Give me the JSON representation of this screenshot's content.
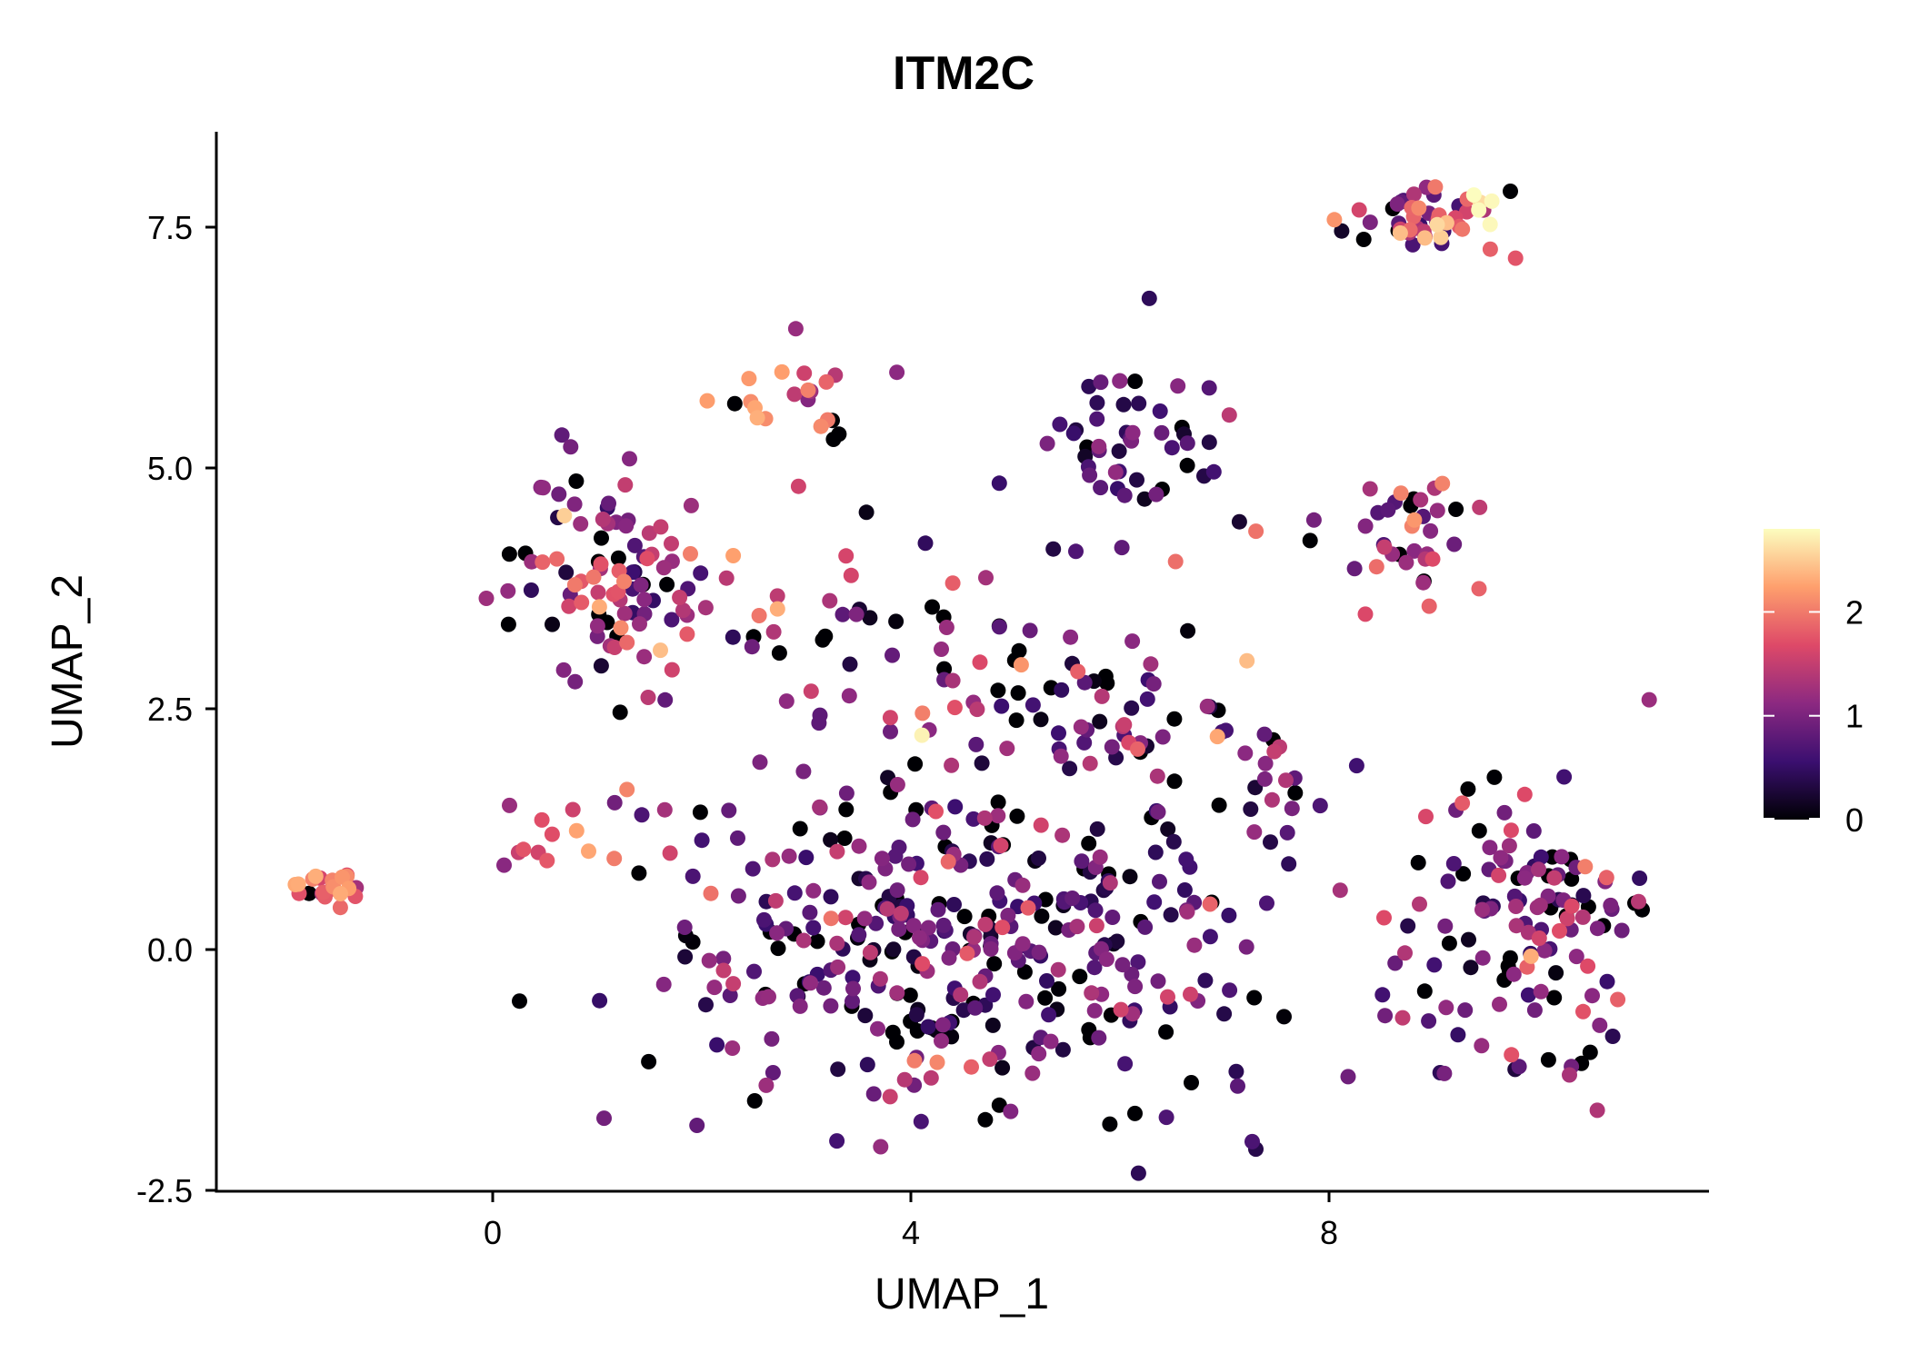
{
  "chart_data": {
    "type": "scatter",
    "title": "ITM2C",
    "xlabel": "UMAP_1",
    "ylabel": "UMAP_2",
    "xlim": [
      -2.6,
      11.7
    ],
    "ylim": [
      -2.5,
      8.5
    ],
    "x_ticks": [
      0,
      4,
      8
    ],
    "x_tick_labels": [
      "0",
      "4",
      "8"
    ],
    "y_ticks": [
      -2.5,
      0.0,
      2.5,
      5.0,
      7.5
    ],
    "y_tick_labels": [
      "-2.5",
      "0.0",
      "2.5",
      "5.0",
      "7.5"
    ],
    "grid": false,
    "legend": {
      "position": "right",
      "type": "colorbar",
      "min": 0,
      "max": 2.8,
      "ticks": [
        0,
        1,
        2
      ],
      "tick_labels": [
        "0",
        "1",
        "2"
      ],
      "colormap": [
        "#000004",
        "#3b0f70",
        "#8c2981",
        "#de4968",
        "#fe9f6d",
        "#fcfdbf"
      ]
    },
    "clusters": [
      {
        "name": "far-left",
        "center": [
          -1.5,
          0.65
        ],
        "spread": [
          0.2,
          0.1
        ],
        "n": 22,
        "expr": 2.0,
        "expr_sd": 0.3
      },
      {
        "name": "top-right",
        "center": [
          8.9,
          7.6
        ],
        "spread": [
          0.35,
          0.18
        ],
        "n": 55,
        "expr": 1.5,
        "expr_sd": 0.7
      },
      {
        "name": "top-mid",
        "center": [
          2.9,
          5.8
        ],
        "spread": [
          0.3,
          0.25
        ],
        "n": 22,
        "expr": 1.8,
        "expr_sd": 0.4
      },
      {
        "name": "mid-right-top",
        "center": [
          6.1,
          5.3
        ],
        "spread": [
          0.5,
          0.5
        ],
        "n": 50,
        "expr": 0.8,
        "expr_sd": 0.4
      },
      {
        "name": "left-upper",
        "center": [
          1.2,
          3.8
        ],
        "spread": [
          0.5,
          0.55
        ],
        "n": 100,
        "expr": 1.3,
        "expr_sd": 0.6
      },
      {
        "name": "right-mid",
        "center": [
          8.8,
          4.2
        ],
        "spread": [
          0.4,
          0.35
        ],
        "n": 38,
        "expr": 1.4,
        "expr_sd": 0.5
      },
      {
        "name": "mid-band",
        "center": [
          4.0,
          3.2
        ],
        "spread": [
          1.0,
          0.8
        ],
        "n": 60,
        "expr": 1.0,
        "expr_sd": 0.6
      },
      {
        "name": "center-bridge",
        "center": [
          6.2,
          2.3
        ],
        "spread": [
          0.9,
          0.5
        ],
        "n": 55,
        "expr": 0.9,
        "expr_sd": 0.6
      },
      {
        "name": "big-lower",
        "center": [
          4.6,
          0.0
        ],
        "spread": [
          1.55,
          0.9
        ],
        "n": 380,
        "expr": 0.8,
        "expr_sd": 0.5
      },
      {
        "name": "lower-right",
        "center": [
          9.9,
          0.3
        ],
        "spread": [
          0.6,
          0.75
        ],
        "n": 130,
        "expr": 1.0,
        "expr_sd": 0.55
      },
      {
        "name": "left-bridge",
        "center": [
          0.7,
          1.1
        ],
        "spread": [
          0.3,
          0.25
        ],
        "n": 14,
        "expr": 1.4,
        "expr_sd": 0.6
      },
      {
        "name": "right-bridge",
        "center": [
          7.5,
          1.7
        ],
        "spread": [
          0.35,
          0.3
        ],
        "n": 12,
        "expr": 0.9,
        "expr_sd": 0.4
      }
    ]
  }
}
